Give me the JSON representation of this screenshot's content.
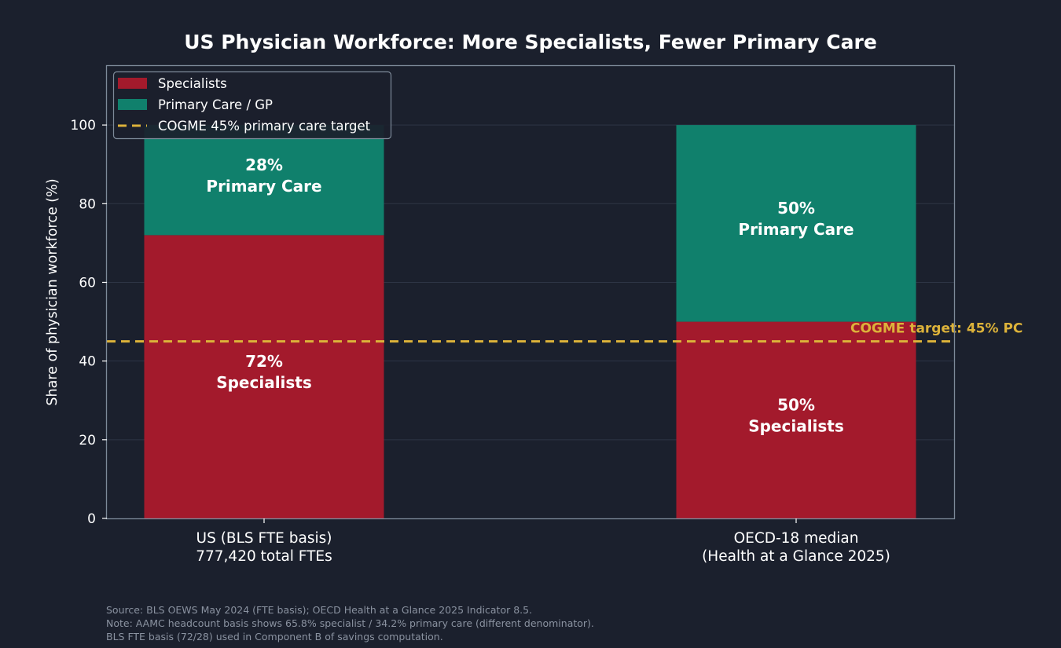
{
  "chart_data": {
    "type": "bar",
    "stacked": true,
    "title": "US Physician Workforce: More Specialists, Fewer Primary Care",
    "ylabel": "Share of physician workforce (%)",
    "xlabel": "",
    "ylim": [
      0,
      115
    ],
    "yticks": [
      0,
      20,
      40,
      60,
      80,
      100
    ],
    "grid": true,
    "legend_position": "top-left",
    "categories": [
      [
        "US (BLS FTE basis)",
        "777,420 total FTEs"
      ],
      [
        "OECD-18 median",
        "(Health at a Glance 2025)"
      ]
    ],
    "series": [
      {
        "name": "Specialists",
        "color": "#a31a2c",
        "values": [
          72,
          50
        ],
        "labels": [
          [
            "72%",
            "Specialists"
          ],
          [
            "50%",
            "Specialists"
          ]
        ]
      },
      {
        "name": "Primary Care / GP",
        "color": "#10806c",
        "values": [
          28,
          50
        ],
        "labels": [
          [
            "28%",
            "Primary Care"
          ],
          [
            "50%",
            "Primary Care"
          ]
        ]
      }
    ],
    "reference_line": {
      "value": 45,
      "legend_label": "COGME 45% primary care target",
      "annotation": "COGME target: 45% PC",
      "color": "#dcb23a",
      "style": "dashed"
    }
  },
  "footer": {
    "lines": [
      "Source: BLS OEWS May 2024 (FTE basis); OECD Health at a Glance 2025 Indicator 8.5.",
      "Note: AAMC headcount basis shows 65.8% specialist / 34.2% primary care (different denominator).",
      "BLS FTE basis (72/28) used in Component B of savings computation."
    ]
  }
}
